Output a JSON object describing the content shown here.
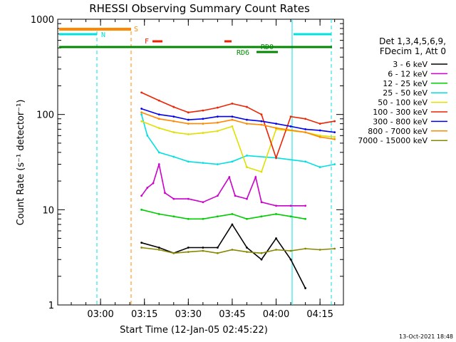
{
  "chart_data": {
    "type": "line",
    "title": "RHESSI Observing Summary Count Rates",
    "xlabel": "Start Time (12-Jan-05 02:45:22)",
    "ylabel": "Count Rate (s⁻¹ detector⁻¹)",
    "yscale": "log",
    "ylim": [
      1,
      1000
    ],
    "xlim": [
      "02:45:22",
      "04:23:00"
    ],
    "x_ticks": [
      "03:00",
      "03:15",
      "03:30",
      "03:45",
      "04:00",
      "04:15"
    ],
    "y_ticks": [
      "1",
      "10",
      "100",
      "1000"
    ],
    "legend_header": [
      "Det 1,3,4,5,6,9,",
      "FDecim 1, Att 0"
    ],
    "legend_position": "right",
    "footer_date": "13-Oct-2021 18:48",
    "flag_labels": {
      "S": "S",
      "N": "N",
      "F": "F",
      "RD0": "RD0",
      "RD6": "RD6"
    },
    "series": [
      {
        "name": "3 - 6 keV",
        "color": "#000000",
        "x": [
          "03:14",
          "03:20",
          "03:25",
          "03:30",
          "03:35",
          "03:40",
          "03:45",
          "03:50",
          "03:55",
          "04:00",
          "04:05",
          "04:10"
        ],
        "values": [
          4.5,
          4,
          3.5,
          4,
          4,
          4,
          7,
          4,
          3,
          5,
          3,
          1.5
        ]
      },
      {
        "name": "6 - 12 keV",
        "color": "#cc00cc",
        "x": [
          "03:14",
          "03:16",
          "03:18",
          "03:20",
          "03:22",
          "03:25",
          "03:30",
          "03:35",
          "03:40",
          "03:44",
          "03:46",
          "03:50",
          "03:53",
          "03:55",
          "04:00",
          "04:05",
          "04:10"
        ],
        "values": [
          14,
          17,
          19,
          30,
          15,
          13,
          13,
          12,
          14,
          22,
          14,
          13,
          22,
          12,
          11,
          11,
          11
        ]
      },
      {
        "name": "12 - 25 keV",
        "color": "#00cc00",
        "x": [
          "03:14",
          "03:20",
          "03:25",
          "03:30",
          "03:35",
          "03:40",
          "03:45",
          "03:50",
          "03:55",
          "04:00",
          "04:05",
          "04:10"
        ],
        "values": [
          10,
          9,
          8.5,
          8,
          8,
          8.5,
          9,
          8,
          8.5,
          9,
          8.5,
          8
        ]
      },
      {
        "name": "25 - 50 keV",
        "color": "#00e0e0",
        "x": [
          "03:14",
          "03:16",
          "03:20",
          "03:25",
          "03:30",
          "03:35",
          "03:40",
          "03:45",
          "03:50",
          "04:00",
          "04:10",
          "04:15",
          "04:20"
        ],
        "values": [
          100,
          60,
          40,
          36,
          32,
          31,
          30,
          32,
          37,
          35,
          32,
          28,
          30
        ]
      },
      {
        "name": "50 - 100 keV",
        "color": "#e0e000",
        "x": [
          "03:14",
          "03:20",
          "03:25",
          "03:30",
          "03:35",
          "03:40",
          "03:45",
          "03:50",
          "03:55",
          "04:00",
          "04:10",
          "04:15",
          "04:20"
        ],
        "values": [
          85,
          72,
          65,
          62,
          64,
          67,
          75,
          28,
          25,
          70,
          65,
          60,
          58
        ]
      },
      {
        "name": "100 - 300 keV",
        "color": "#ee2200",
        "x": [
          "03:14",
          "03:20",
          "03:25",
          "03:30",
          "03:35",
          "03:40",
          "03:45",
          "03:50",
          "03:55",
          "04:00",
          "04:05",
          "04:10",
          "04:15",
          "04:20"
        ],
        "values": [
          170,
          140,
          120,
          105,
          110,
          118,
          130,
          120,
          100,
          35,
          95,
          90,
          80,
          85
        ]
      },
      {
        "name": "300 - 800 keV",
        "color": "#0000ee",
        "x": [
          "03:14",
          "03:20",
          "03:25",
          "03:30",
          "03:35",
          "03:40",
          "03:45",
          "03:50",
          "03:55",
          "04:00",
          "04:05",
          "04:10",
          "04:15",
          "04:20"
        ],
        "values": [
          115,
          100,
          95,
          88,
          90,
          95,
          95,
          88,
          85,
          80,
          75,
          70,
          68,
          65
        ]
      },
      {
        "name": "800 - 7000 keV",
        "color": "#ff8800",
        "x": [
          "03:14",
          "03:20",
          "03:25",
          "03:30",
          "03:35",
          "03:40",
          "03:45",
          "03:50",
          "03:55",
          "04:00",
          "04:10",
          "04:15",
          "04:20"
        ],
        "values": [
          105,
          90,
          85,
          80,
          80,
          82,
          88,
          80,
          78,
          72,
          65,
          58,
          55
        ]
      },
      {
        "name": "7000 - 15000 keV",
        "color": "#888800",
        "x": [
          "03:14",
          "03:20",
          "03:25",
          "03:30",
          "03:35",
          "03:40",
          "03:45",
          "03:50",
          "03:55",
          "04:00",
          "04:05",
          "04:10",
          "04:15",
          "04:20"
        ],
        "values": [
          4,
          3.8,
          3.5,
          3.6,
          3.7,
          3.5,
          3.8,
          3.6,
          3.5,
          3.8,
          3.7,
          3.9,
          3.8,
          3.9
        ]
      }
    ]
  }
}
